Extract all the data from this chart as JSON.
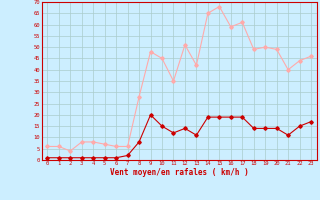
{
  "hours": [
    0,
    1,
    2,
    3,
    4,
    5,
    6,
    7,
    8,
    9,
    10,
    11,
    12,
    13,
    14,
    15,
    16,
    17,
    18,
    19,
    20,
    21,
    22,
    23
  ],
  "wind_avg": [
    1,
    1,
    1,
    1,
    1,
    1,
    1,
    2,
    8,
    20,
    15,
    12,
    14,
    11,
    19,
    19,
    19,
    19,
    14,
    14,
    14,
    11,
    15,
    17
  ],
  "wind_gust": [
    6,
    6,
    4,
    8,
    8,
    7,
    6,
    6,
    28,
    48,
    45,
    35,
    51,
    42,
    65,
    68,
    59,
    61,
    49,
    50,
    49,
    40,
    44,
    46
  ],
  "wind_avg_color": "#cc0000",
  "wind_gust_color": "#ffaaaa",
  "bg_color": "#cceeff",
  "grid_color": "#aacccc",
  "axis_color": "#cc0000",
  "xlabel": "Vent moyen/en rafales ( km/h )",
  "ylim": [
    0,
    70
  ],
  "yticks": [
    0,
    5,
    10,
    15,
    20,
    25,
    30,
    35,
    40,
    45,
    50,
    55,
    60,
    65,
    70
  ],
  "marker": "D",
  "marker_size": 1.8,
  "linewidth": 0.8
}
